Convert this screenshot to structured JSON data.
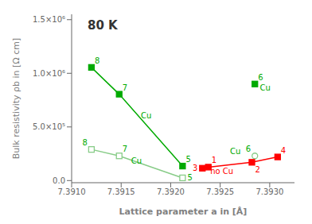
{
  "chart_data": {
    "type": "line",
    "title": "80 K",
    "x_label": "Lattice parameter a in [Å]",
    "y_label": "Bulk resistivity ρb in [Ω cm]",
    "xlim": [
      7.391,
      7.39325
    ],
    "ylim": [
      -20000,
      1550000
    ],
    "xticks": [
      {
        "value": 7.391,
        "label": "7.3910"
      },
      {
        "value": 7.3915,
        "label": "7.3915"
      },
      {
        "value": 7.392,
        "label": "7.3920"
      },
      {
        "value": 7.3925,
        "label": "7.3925"
      },
      {
        "value": 7.393,
        "label": "7.3930"
      }
    ],
    "yticks": [
      {
        "value": 0,
        "label": "0.0"
      },
      {
        "value": 500000,
        "label": "5.0×10⁵"
      },
      {
        "value": 1000000,
        "label": "1.0×10⁶"
      },
      {
        "value": 1500000,
        "label": "1.5×10⁶"
      }
    ],
    "grid": false,
    "series": [
      {
        "type": "line",
        "color": "#00aa00",
        "marker": "square",
        "x": [
          7.3912,
          7.39148,
          7.39212
        ],
        "values": [
          1055000,
          805000,
          135000
        ]
      },
      {
        "type": "scatter",
        "color": "#00aa00",
        "marker": "square",
        "x": [
          7.39285
        ],
        "values": [
          900000
        ]
      },
      {
        "type": "line",
        "color": "#88cc88",
        "marker": "open square",
        "x": [
          7.3912,
          7.39148,
          7.39212
        ],
        "values": [
          290000,
          230000,
          25000
        ]
      },
      {
        "type": "scatter",
        "color": "#88cc88",
        "marker": "open circle",
        "x": [
          7.39285
        ],
        "values": [
          230000
        ]
      },
      {
        "type": "line",
        "color": "red",
        "marker": "square",
        "x": [
          7.39232,
          7.39238,
          7.39282,
          7.39308
        ],
        "values": [
          115000,
          125000,
          170000,
          220000
        ]
      }
    ],
    "annotations": [
      {
        "text": "8",
        "x": 7.3912,
        "y": 1055000,
        "color": "#00aa00",
        "position": "above-right"
      },
      {
        "text": "7",
        "x": 7.39148,
        "y": 805000,
        "color": "#00aa00",
        "position": "above-right"
      },
      {
        "text": "5",
        "x": 7.39212,
        "y": 135000,
        "color": "#00aa00",
        "position": "above-right"
      },
      {
        "text": "6",
        "x": 7.39285,
        "y": 900000,
        "color": "#00aa00",
        "position": "above-right"
      },
      {
        "text": "8",
        "x": 7.3912,
        "y": 290000,
        "color": "#00aa00",
        "position": "above-left"
      },
      {
        "text": "7",
        "x": 7.39148,
        "y": 230000,
        "color": "#00aa00",
        "position": "above-right"
      },
      {
        "text": "5",
        "x": 7.39212,
        "y": 25000,
        "color": "#00aa00",
        "position": "right"
      },
      {
        "text": "6",
        "x": 7.39285,
        "y": 230000,
        "color": "#00aa00",
        "position": "above-left"
      },
      {
        "text": "Cu",
        "x": 7.3926,
        "y": 245000,
        "color": "#00aa00",
        "position": "at"
      },
      {
        "text": "3",
        "x": 7.39232,
        "y": 115000,
        "color": "red",
        "position": "left"
      },
      {
        "text": "1",
        "x": 7.39238,
        "y": 125000,
        "color": "red",
        "position": "above-right"
      },
      {
        "text": "2",
        "x": 7.39282,
        "y": 170000,
        "color": "red",
        "position": "below-right"
      },
      {
        "text": "4",
        "x": 7.39308,
        "y": 220000,
        "color": "red",
        "position": "above-right"
      },
      {
        "text": "Cu",
        "x": 7.3917,
        "y": 580000,
        "color": "#00aa00",
        "position": "at"
      },
      {
        "text": "Cu",
        "x": 7.3916,
        "y": 155000,
        "color": "#00aa00",
        "position": "at"
      },
      {
        "text": "no Cu",
        "x": 7.3924,
        "y": 65000,
        "color": "red",
        "position": "at"
      },
      {
        "text": "Cu",
        "x": 7.3929,
        "y": 840000,
        "color": "#00aa00",
        "position": "at"
      }
    ]
  }
}
